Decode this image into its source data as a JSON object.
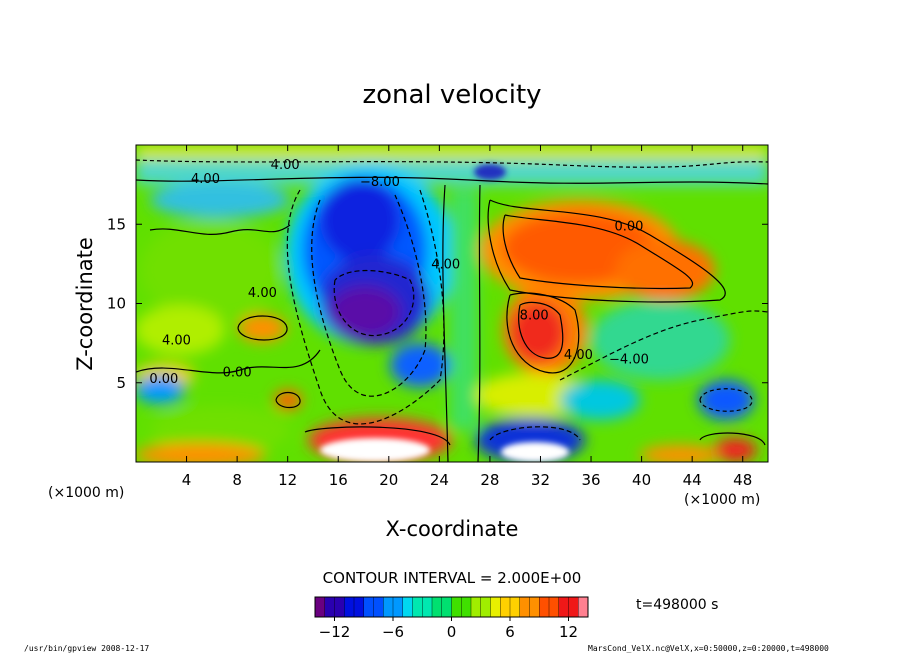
{
  "chart_data": {
    "type": "heatmap",
    "title": "zonal velocity",
    "xlabel": "X-coordinate",
    "ylabel": "Z-coordinate",
    "x_unit": "(×1000 m)",
    "z_unit": "(×1000 m)",
    "xlim": [
      0,
      50
    ],
    "ylim": [
      0,
      20
    ],
    "x_ticks": [
      4,
      8,
      12,
      16,
      20,
      24,
      28,
      32,
      36,
      40,
      44,
      48
    ],
    "y_ticks": [
      5,
      10,
      15
    ],
    "contour_interval_text": "CONTOUR INTERVAL = 2.000E+00",
    "time_text": "t=498000 s",
    "colorbar": {
      "range": [
        -14,
        14
      ],
      "ticks": [
        -12,
        -6,
        0,
        6,
        12
      ],
      "tick_labels": [
        "−12",
        "−6",
        "0",
        "6",
        "12"
      ],
      "colors": [
        "#6a0080",
        "#2a00b0",
        "#0010e0",
        "#0050ff",
        "#0098ff",
        "#00d8f0",
        "#00e8b0",
        "#00e070",
        "#40e000",
        "#a0ee00",
        "#e8f000",
        "#ffd000",
        "#ff9000",
        "#ff5000",
        "#f01818",
        "#ff8090"
      ]
    },
    "contour_labels": [
      {
        "text": "4.00",
        "x": 5.5,
        "z": 17.6
      },
      {
        "text": "4.00",
        "x": 11.8,
        "z": 18.5
      },
      {
        "text": "−8.00",
        "x": 19.3,
        "z": 17.4
      },
      {
        "text": "4.00",
        "x": 24.5,
        "z": 12.2
      },
      {
        "text": "4.00",
        "x": 10.0,
        "z": 10.4
      },
      {
        "text": "4.00",
        "x": 3.2,
        "z": 7.4
      },
      {
        "text": "0.00",
        "x": 2.2,
        "z": 5.0
      },
      {
        "text": "0.00",
        "x": 8.0,
        "z": 5.4
      },
      {
        "text": "8.00",
        "x": 31.5,
        "z": 9.0
      },
      {
        "text": "4.00",
        "x": 35.0,
        "z": 6.5
      },
      {
        "text": "−4.00",
        "x": 39.0,
        "z": 6.2
      },
      {
        "text": "0.00",
        "x": 39.0,
        "z": 14.6
      }
    ],
    "features": [
      {
        "sign": "negative",
        "value_min": -14,
        "center_x": 18,
        "center_z": 10.5,
        "label": "westward jet core"
      },
      {
        "sign": "positive",
        "value_max": 10,
        "center_x": 33,
        "center_z": 14,
        "label": "eastward upper lobe"
      },
      {
        "sign": "positive",
        "value_max": 10,
        "center_x": 31.5,
        "center_z": 8,
        "label": "eastward lower lobe"
      },
      {
        "sign": "positive",
        "value_max": 14,
        "center_x": 20,
        "center_z": 1.0,
        "label": "near-surface maximum"
      },
      {
        "sign": "negative",
        "value_min": -14,
        "center_x": 32,
        "center_z": 1.2,
        "label": "near-surface minimum"
      }
    ]
  },
  "footer": {
    "left": "/usr/bin/gpview  2008-12-17",
    "right": "MarsCond_VelX.nc@VelX,x=0:50000,z=0:20000,t=498000"
  },
  "colors": {
    "frame": "#000000",
    "background": "#ffffff"
  }
}
